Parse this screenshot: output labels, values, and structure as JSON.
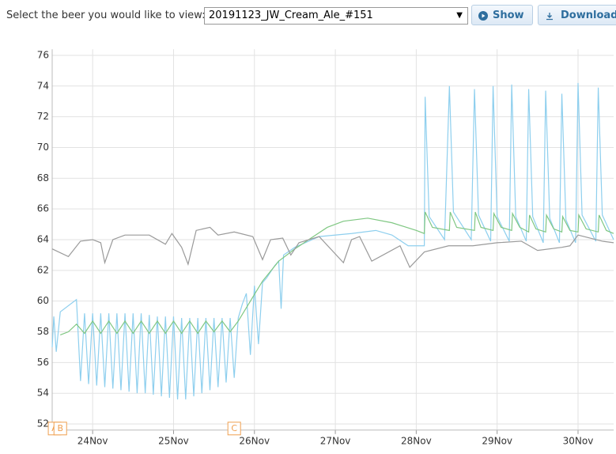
{
  "controls": {
    "prompt": "Select the beer you would like to view:",
    "selected": "20191123_JW_Cream_Ale_#151",
    "show_button": "Show",
    "download_button": "Download"
  },
  "chart_data": {
    "type": "line",
    "xlim": [
      23.5,
      30.44
    ],
    "ylim": [
      51.6,
      76.4
    ],
    "xticks": [
      {
        "value": 24,
        "label": "24Nov"
      },
      {
        "value": 25,
        "label": "25Nov"
      },
      {
        "value": 26,
        "label": "26Nov"
      },
      {
        "value": 27,
        "label": "27Nov"
      },
      {
        "value": 28,
        "label": "28Nov"
      },
      {
        "value": 29,
        "label": "29Nov"
      },
      {
        "value": 30,
        "label": "30Nov"
      }
    ],
    "yticks": [
      52,
      54,
      56,
      58,
      60,
      62,
      64,
      66,
      68,
      70,
      72,
      74,
      76
    ],
    "grid": true,
    "annotations": [
      {
        "x": 23.53,
        "label": "A"
      },
      {
        "x": 23.6,
        "label": "B"
      },
      {
        "x": 25.75,
        "label": "C"
      }
    ],
    "series": [
      {
        "color": "#8ecfee",
        "x": [
          23.5,
          23.52,
          23.55,
          23.6,
          23.8,
          23.85,
          23.9,
          23.95,
          24.0,
          24.05,
          24.1,
          24.15,
          24.2,
          24.25,
          24.3,
          24.35,
          24.4,
          24.45,
          24.5,
          24.55,
          24.6,
          24.65,
          24.7,
          24.75,
          24.8,
          24.85,
          24.9,
          24.95,
          25.0,
          25.05,
          25.1,
          25.15,
          25.2,
          25.25,
          25.3,
          25.35,
          25.4,
          25.45,
          25.5,
          25.55,
          25.6,
          25.65,
          25.7,
          25.75,
          25.8,
          25.85,
          25.9,
          25.95,
          26.0,
          26.05,
          26.1,
          26.15,
          26.25,
          26.3,
          26.33,
          26.36,
          26.5,
          26.8,
          27.2,
          27.5,
          27.7,
          27.9,
          28.1,
          28.11,
          28.16,
          28.35,
          28.41,
          28.46,
          28.68,
          28.72,
          28.77,
          28.92,
          28.95,
          29.0,
          29.15,
          29.18,
          29.23,
          29.36,
          29.39,
          29.44,
          29.57,
          29.6,
          29.65,
          29.77,
          29.8,
          29.85,
          29.97,
          30.0,
          30.05,
          30.22,
          30.25,
          30.3,
          30.44
        ],
        "values": [
          57,
          59,
          56.7,
          59.3,
          60.1,
          54.8,
          59.2,
          54.6,
          59.2,
          54.5,
          59.2,
          54.4,
          59.2,
          54.3,
          59.2,
          54.2,
          59.2,
          54.1,
          59.2,
          54.0,
          59.2,
          54.0,
          59.1,
          53.9,
          59.0,
          53.8,
          59.0,
          53.7,
          59.0,
          53.6,
          58.9,
          53.6,
          58.9,
          53.8,
          58.9,
          54.0,
          58.9,
          54.2,
          58.9,
          54.4,
          58.9,
          54.7,
          58.9,
          55.0,
          58.9,
          59.8,
          60.5,
          56.5,
          61.0,
          57.2,
          61.2,
          61.5,
          62.3,
          62.6,
          59.5,
          63.0,
          63.5,
          64.2,
          64.4,
          64.6,
          64.3,
          63.6,
          63.6,
          73.3,
          65.5,
          64.0,
          74.0,
          65.8,
          64.0,
          73.8,
          65.6,
          63.9,
          74.0,
          65.5,
          63.9,
          74.1,
          65.5,
          63.9,
          73.8,
          65.5,
          63.8,
          73.7,
          65.4,
          63.8,
          73.5,
          65.3,
          63.8,
          74.2,
          65.6,
          63.9,
          73.9,
          65.6,
          64.0
        ]
      },
      {
        "color": "#7fc782",
        "x": [
          23.6,
          23.7,
          23.8,
          23.9,
          24.0,
          24.1,
          24.2,
          24.3,
          24.4,
          24.5,
          24.6,
          24.7,
          24.8,
          24.9,
          25.0,
          25.1,
          25.2,
          25.3,
          25.4,
          25.5,
          25.6,
          25.7,
          25.8,
          25.95,
          26.1,
          26.3,
          26.5,
          26.7,
          26.9,
          27.1,
          27.4,
          27.7,
          28.0,
          28.1,
          28.11,
          28.2,
          28.41,
          28.42,
          28.5,
          28.72,
          28.73,
          28.8,
          28.95,
          28.96,
          29.05,
          29.18,
          29.19,
          29.28,
          29.39,
          29.4,
          29.48,
          29.6,
          29.61,
          29.7,
          29.8,
          29.81,
          29.9,
          30.0,
          30.01,
          30.1,
          30.25,
          30.26,
          30.35,
          30.44
        ],
        "values": [
          57.8,
          58.0,
          58.5,
          57.9,
          58.7,
          57.9,
          58.7,
          57.9,
          58.7,
          57.9,
          58.7,
          57.9,
          58.7,
          57.9,
          58.7,
          57.9,
          58.7,
          57.9,
          58.7,
          58.0,
          58.7,
          58.0,
          58.7,
          60.0,
          61.3,
          62.6,
          63.4,
          64.1,
          64.8,
          65.2,
          65.4,
          65.1,
          64.6,
          64.4,
          65.8,
          64.8,
          64.6,
          65.8,
          64.8,
          64.6,
          65.8,
          64.8,
          64.6,
          65.7,
          64.8,
          64.6,
          65.7,
          64.8,
          64.5,
          65.6,
          64.7,
          64.5,
          65.6,
          64.7,
          64.5,
          65.5,
          64.6,
          64.5,
          65.6,
          64.7,
          64.5,
          65.6,
          64.6,
          64.4
        ]
      },
      {
        "color": "#9a9a9a",
        "x": [
          23.5,
          23.7,
          23.85,
          24.0,
          24.1,
          24.15,
          24.25,
          24.4,
          24.7,
          24.9,
          24.98,
          25.1,
          25.18,
          25.28,
          25.45,
          25.55,
          25.75,
          25.98,
          26.1,
          26.2,
          26.35,
          26.45,
          26.55,
          26.8,
          27.1,
          27.2,
          27.3,
          27.45,
          27.8,
          27.92,
          28.1,
          28.4,
          28.7,
          29.0,
          29.3,
          29.5,
          29.8,
          29.9,
          30.0,
          30.3,
          30.44
        ],
        "values": [
          63.4,
          62.9,
          63.9,
          64.0,
          63.8,
          62.5,
          64.0,
          64.3,
          64.3,
          63.7,
          64.4,
          63.5,
          62.4,
          64.6,
          64.8,
          64.3,
          64.5,
          64.2,
          62.7,
          64.0,
          64.1,
          63.0,
          63.8,
          64.2,
          62.5,
          64.0,
          64.2,
          62.6,
          63.6,
          62.2,
          63.2,
          63.6,
          63.6,
          63.8,
          63.9,
          63.3,
          63.5,
          63.6,
          64.3,
          63.9,
          63.8
        ]
      }
    ]
  }
}
